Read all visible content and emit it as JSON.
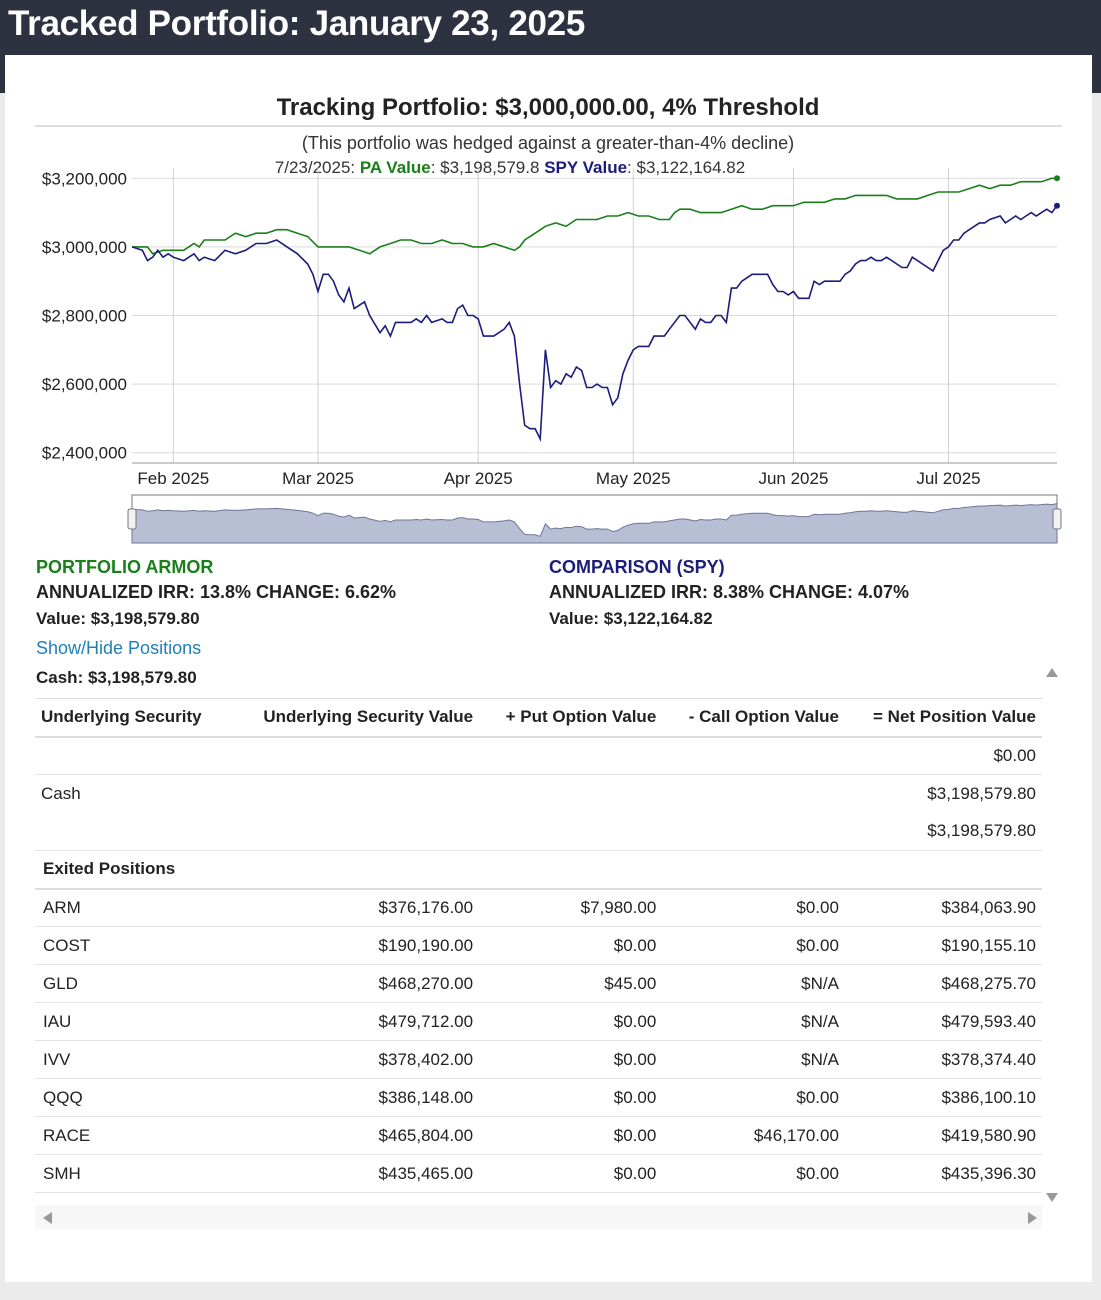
{
  "page": {
    "title": "Tracked Portfolio: January 23, 2025"
  },
  "colors": {
    "pa": "#1a7f1a",
    "spy": "#1c1c7a",
    "link": "#1f7fb6",
    "header_bg": "#2c3240"
  },
  "chart_data": {
    "type": "line",
    "title": "Tracking Portfolio: $3,000,000.00, 4% Threshold",
    "subtitle": "(This portfolio was hedged against a greater-than-4% decline)",
    "tooltip": {
      "date": "7/23/2025:",
      "pa_label": "PA Value",
      "pa_value": ": $3,198,579.8",
      "spy_label": "SPY Value",
      "spy_value": ": $3,122,164.82"
    },
    "x_range": [
      0,
      179
    ],
    "y_range": [
      2370000,
      3230000
    ],
    "y_ticks": [
      {
        "value": 2400000,
        "label": "$2,400,000"
      },
      {
        "value": 2600000,
        "label": "$2,600,000"
      },
      {
        "value": 2800000,
        "label": "$2,800,000"
      },
      {
        "value": 3000000,
        "label": "$3,000,000"
      },
      {
        "value": 3200000,
        "label": "$3,200,000"
      }
    ],
    "x_ticks": [
      {
        "day": 8,
        "label": "Feb 2025"
      },
      {
        "day": 36,
        "label": "Mar 2025"
      },
      {
        "day": 67,
        "label": "Apr 2025"
      },
      {
        "day": 97,
        "label": "May 2025"
      },
      {
        "day": 128,
        "label": "Jun 2025"
      },
      {
        "day": 158,
        "label": "Jul 2025"
      }
    ],
    "series": [
      {
        "name": "PA Value",
        "color": "#1a7f1a",
        "points": [
          [
            0,
            3000000
          ],
          [
            3,
            3000000
          ],
          [
            4,
            2980000
          ],
          [
            6,
            2990000
          ],
          [
            8,
            2990000
          ],
          [
            10,
            2990000
          ],
          [
            12,
            3010000
          ],
          [
            13,
            3000000
          ],
          [
            14,
            3020000
          ],
          [
            16,
            3020000
          ],
          [
            18,
            3020000
          ],
          [
            20,
            3040000
          ],
          [
            22,
            3030000
          ],
          [
            24,
            3040000
          ],
          [
            26,
            3040000
          ],
          [
            28,
            3050000
          ],
          [
            30,
            3050000
          ],
          [
            32,
            3040000
          ],
          [
            34,
            3030000
          ],
          [
            36,
            3000000
          ],
          [
            38,
            3000000
          ],
          [
            40,
            3000000
          ],
          [
            42,
            3000000
          ],
          [
            44,
            2990000
          ],
          [
            46,
            2980000
          ],
          [
            48,
            3000000
          ],
          [
            50,
            3010000
          ],
          [
            52,
            3020000
          ],
          [
            54,
            3020000
          ],
          [
            56,
            3010000
          ],
          [
            58,
            3010000
          ],
          [
            60,
            3020000
          ],
          [
            62,
            3010000
          ],
          [
            64,
            3010000
          ],
          [
            66,
            3000000
          ],
          [
            68,
            3000000
          ],
          [
            70,
            3010000
          ],
          [
            72,
            3000000
          ],
          [
            74,
            2990000
          ],
          [
            75,
            3000000
          ],
          [
            76,
            3020000
          ],
          [
            78,
            3040000
          ],
          [
            80,
            3060000
          ],
          [
            82,
            3070000
          ],
          [
            84,
            3060000
          ],
          [
            86,
            3080000
          ],
          [
            88,
            3080000
          ],
          [
            90,
            3080000
          ],
          [
            92,
            3090000
          ],
          [
            94,
            3090000
          ],
          [
            96,
            3100000
          ],
          [
            98,
            3090000
          ],
          [
            100,
            3090000
          ],
          [
            102,
            3080000
          ],
          [
            104,
            3080000
          ],
          [
            105,
            3100000
          ],
          [
            106,
            3110000
          ],
          [
            108,
            3110000
          ],
          [
            110,
            3100000
          ],
          [
            112,
            3100000
          ],
          [
            114,
            3100000
          ],
          [
            116,
            3110000
          ],
          [
            118,
            3120000
          ],
          [
            120,
            3110000
          ],
          [
            122,
            3110000
          ],
          [
            124,
            3120000
          ],
          [
            126,
            3120000
          ],
          [
            128,
            3120000
          ],
          [
            130,
            3130000
          ],
          [
            132,
            3130000
          ],
          [
            134,
            3130000
          ],
          [
            136,
            3140000
          ],
          [
            138,
            3140000
          ],
          [
            140,
            3150000
          ],
          [
            142,
            3150000
          ],
          [
            144,
            3150000
          ],
          [
            146,
            3150000
          ],
          [
            148,
            3140000
          ],
          [
            150,
            3140000
          ],
          [
            152,
            3140000
          ],
          [
            154,
            3150000
          ],
          [
            156,
            3160000
          ],
          [
            158,
            3160000
          ],
          [
            160,
            3160000
          ],
          [
            162,
            3170000
          ],
          [
            164,
            3180000
          ],
          [
            166,
            3170000
          ],
          [
            168,
            3180000
          ],
          [
            170,
            3180000
          ],
          [
            172,
            3190000
          ],
          [
            174,
            3190000
          ],
          [
            176,
            3190000
          ],
          [
            178,
            3200000
          ],
          [
            179,
            3200000
          ]
        ]
      },
      {
        "name": "SPY Value",
        "color": "#1c1c7a",
        "points": [
          [
            0,
            3000000
          ],
          [
            2,
            2990000
          ],
          [
            3,
            2960000
          ],
          [
            4,
            2970000
          ],
          [
            5,
            2990000
          ],
          [
            6,
            2970000
          ],
          [
            7,
            2980000
          ],
          [
            8,
            2970000
          ],
          [
            10,
            2960000
          ],
          [
            12,
            2980000
          ],
          [
            13,
            2960000
          ],
          [
            14,
            2970000
          ],
          [
            16,
            2960000
          ],
          [
            18,
            2990000
          ],
          [
            20,
            2980000
          ],
          [
            22,
            2990000
          ],
          [
            24,
            3010000
          ],
          [
            26,
            3010000
          ],
          [
            28,
            3020000
          ],
          [
            30,
            3000000
          ],
          [
            32,
            2980000
          ],
          [
            34,
            2950000
          ],
          [
            35,
            2920000
          ],
          [
            36,
            2870000
          ],
          [
            37,
            2920000
          ],
          [
            38,
            2920000
          ],
          [
            39,
            2900000
          ],
          [
            40,
            2860000
          ],
          [
            41,
            2840000
          ],
          [
            42,
            2880000
          ],
          [
            43,
            2820000
          ],
          [
            44,
            2830000
          ],
          [
            45,
            2840000
          ],
          [
            46,
            2800000
          ],
          [
            48,
            2750000
          ],
          [
            49,
            2770000
          ],
          [
            50,
            2740000
          ],
          [
            51,
            2780000
          ],
          [
            52,
            2780000
          ],
          [
            53,
            2780000
          ],
          [
            54,
            2780000
          ],
          [
            55,
            2790000
          ],
          [
            56,
            2780000
          ],
          [
            57,
            2800000
          ],
          [
            58,
            2780000
          ],
          [
            60,
            2790000
          ],
          [
            61,
            2780000
          ],
          [
            62,
            2780000
          ],
          [
            63,
            2820000
          ],
          [
            64,
            2830000
          ],
          [
            65,
            2800000
          ],
          [
            66,
            2800000
          ],
          [
            67,
            2790000
          ],
          [
            68,
            2740000
          ],
          [
            70,
            2740000
          ],
          [
            72,
            2760000
          ],
          [
            73,
            2780000
          ],
          [
            74,
            2740000
          ],
          [
            75,
            2600000
          ],
          [
            76,
            2480000
          ],
          [
            77,
            2470000
          ],
          [
            78,
            2470000
          ],
          [
            79,
            2440000
          ],
          [
            80,
            2700000
          ],
          [
            81,
            2590000
          ],
          [
            82,
            2610000
          ],
          [
            83,
            2600000
          ],
          [
            84,
            2630000
          ],
          [
            85,
            2620000
          ],
          [
            86,
            2650000
          ],
          [
            87,
            2640000
          ],
          [
            88,
            2590000
          ],
          [
            89,
            2590000
          ],
          [
            90,
            2600000
          ],
          [
            91,
            2590000
          ],
          [
            92,
            2590000
          ],
          [
            93,
            2540000
          ],
          [
            94,
            2560000
          ],
          [
            95,
            2630000
          ],
          [
            96,
            2670000
          ],
          [
            97,
            2700000
          ],
          [
            98,
            2710000
          ],
          [
            100,
            2710000
          ],
          [
            101,
            2740000
          ],
          [
            103,
            2740000
          ],
          [
            104,
            2760000
          ],
          [
            106,
            2800000
          ],
          [
            107,
            2800000
          ],
          [
            109,
            2760000
          ],
          [
            110,
            2790000
          ],
          [
            111,
            2780000
          ],
          [
            112,
            2780000
          ],
          [
            113,
            2800000
          ],
          [
            114,
            2800000
          ],
          [
            115,
            2780000
          ],
          [
            116,
            2880000
          ],
          [
            117,
            2880000
          ],
          [
            118,
            2900000
          ],
          [
            119,
            2910000
          ],
          [
            120,
            2920000
          ],
          [
            121,
            2920000
          ],
          [
            122,
            2920000
          ],
          [
            123,
            2920000
          ],
          [
            124,
            2890000
          ],
          [
            125,
            2870000
          ],
          [
            126,
            2870000
          ],
          [
            127,
            2860000
          ],
          [
            128,
            2870000
          ],
          [
            129,
            2850000
          ],
          [
            130,
            2850000
          ],
          [
            131,
            2850000
          ],
          [
            132,
            2900000
          ],
          [
            133,
            2890000
          ],
          [
            134,
            2900000
          ],
          [
            136,
            2900000
          ],
          [
            137,
            2900000
          ],
          [
            138,
            2920000
          ],
          [
            139,
            2930000
          ],
          [
            140,
            2950000
          ],
          [
            141,
            2960000
          ],
          [
            142,
            2960000
          ],
          [
            143,
            2970000
          ],
          [
            144,
            2960000
          ],
          [
            145,
            2960000
          ],
          [
            146,
            2970000
          ],
          [
            148,
            2950000
          ],
          [
            149,
            2940000
          ],
          [
            150,
            2940000
          ],
          [
            151,
            2970000
          ],
          [
            152,
            2960000
          ],
          [
            153,
            2950000
          ],
          [
            154,
            2940000
          ],
          [
            155,
            2930000
          ],
          [
            156,
            2960000
          ],
          [
            157,
            2990000
          ],
          [
            158,
            3000000
          ],
          [
            159,
            3020000
          ],
          [
            160,
            3020000
          ],
          [
            161,
            3040000
          ],
          [
            162,
            3050000
          ],
          [
            163,
            3060000
          ],
          [
            164,
            3070000
          ],
          [
            165,
            3070000
          ],
          [
            166,
            3080000
          ],
          [
            168,
            3090000
          ],
          [
            169,
            3070000
          ],
          [
            170,
            3080000
          ],
          [
            171,
            3090000
          ],
          [
            172,
            3080000
          ],
          [
            173,
            3090000
          ],
          [
            174,
            3100000
          ],
          [
            175,
            3090000
          ],
          [
            176,
            3100000
          ],
          [
            177,
            3110000
          ],
          [
            178,
            3100000
          ],
          [
            179,
            3120000
          ]
        ]
      }
    ]
  },
  "summary": {
    "pa": {
      "title": "PORTFOLIO ARMOR",
      "line": "ANNUALIZED IRR: 13.8% CHANGE: 6.62%",
      "value": "Value: $3,198,579.80"
    },
    "spy": {
      "title": "COMPARISON (SPY)",
      "line": "ANNUALIZED IRR: 8.38% CHANGE: 4.07%",
      "value": "Value: $3,122,164.82"
    }
  },
  "toggle": "Show/Hide Positions",
  "cash": "Cash: $3,198,579.80",
  "table": {
    "headers": [
      "Underlying Security",
      "Underlying Security Value",
      "+ Put Option Value",
      "- Call Option Value",
      "= Net Position Value"
    ],
    "pre_rows": {
      "zero": "$0.00",
      "cash_label": "Cash",
      "cash_value": "$3,198,579.80",
      "total": "$3,198,579.80"
    },
    "exited_label": "Exited Positions",
    "rows": [
      [
        "ARM",
        "$376,176.00",
        "$7,980.00",
        "$0.00",
        "$384,063.90"
      ],
      [
        "COST",
        "$190,190.00",
        "$0.00",
        "$0.00",
        "$190,155.10"
      ],
      [
        "GLD",
        "$468,270.00",
        "$45.00",
        "$N/A",
        "$468,275.70"
      ],
      [
        "IAU",
        "$479,712.00",
        "$0.00",
        "$N/A",
        "$479,593.40"
      ],
      [
        "IVV",
        "$378,402.00",
        "$0.00",
        "$N/A",
        "$378,374.40"
      ],
      [
        "QQQ",
        "$386,148.00",
        "$0.00",
        "$0.00",
        "$386,100.10"
      ],
      [
        "RACE",
        "$465,804.00",
        "$0.00",
        "$46,170.00",
        "$419,580.90"
      ],
      [
        "SMH",
        "$435,465.00",
        "$0.00",
        "$0.00",
        "$435,396.30"
      ]
    ]
  }
}
